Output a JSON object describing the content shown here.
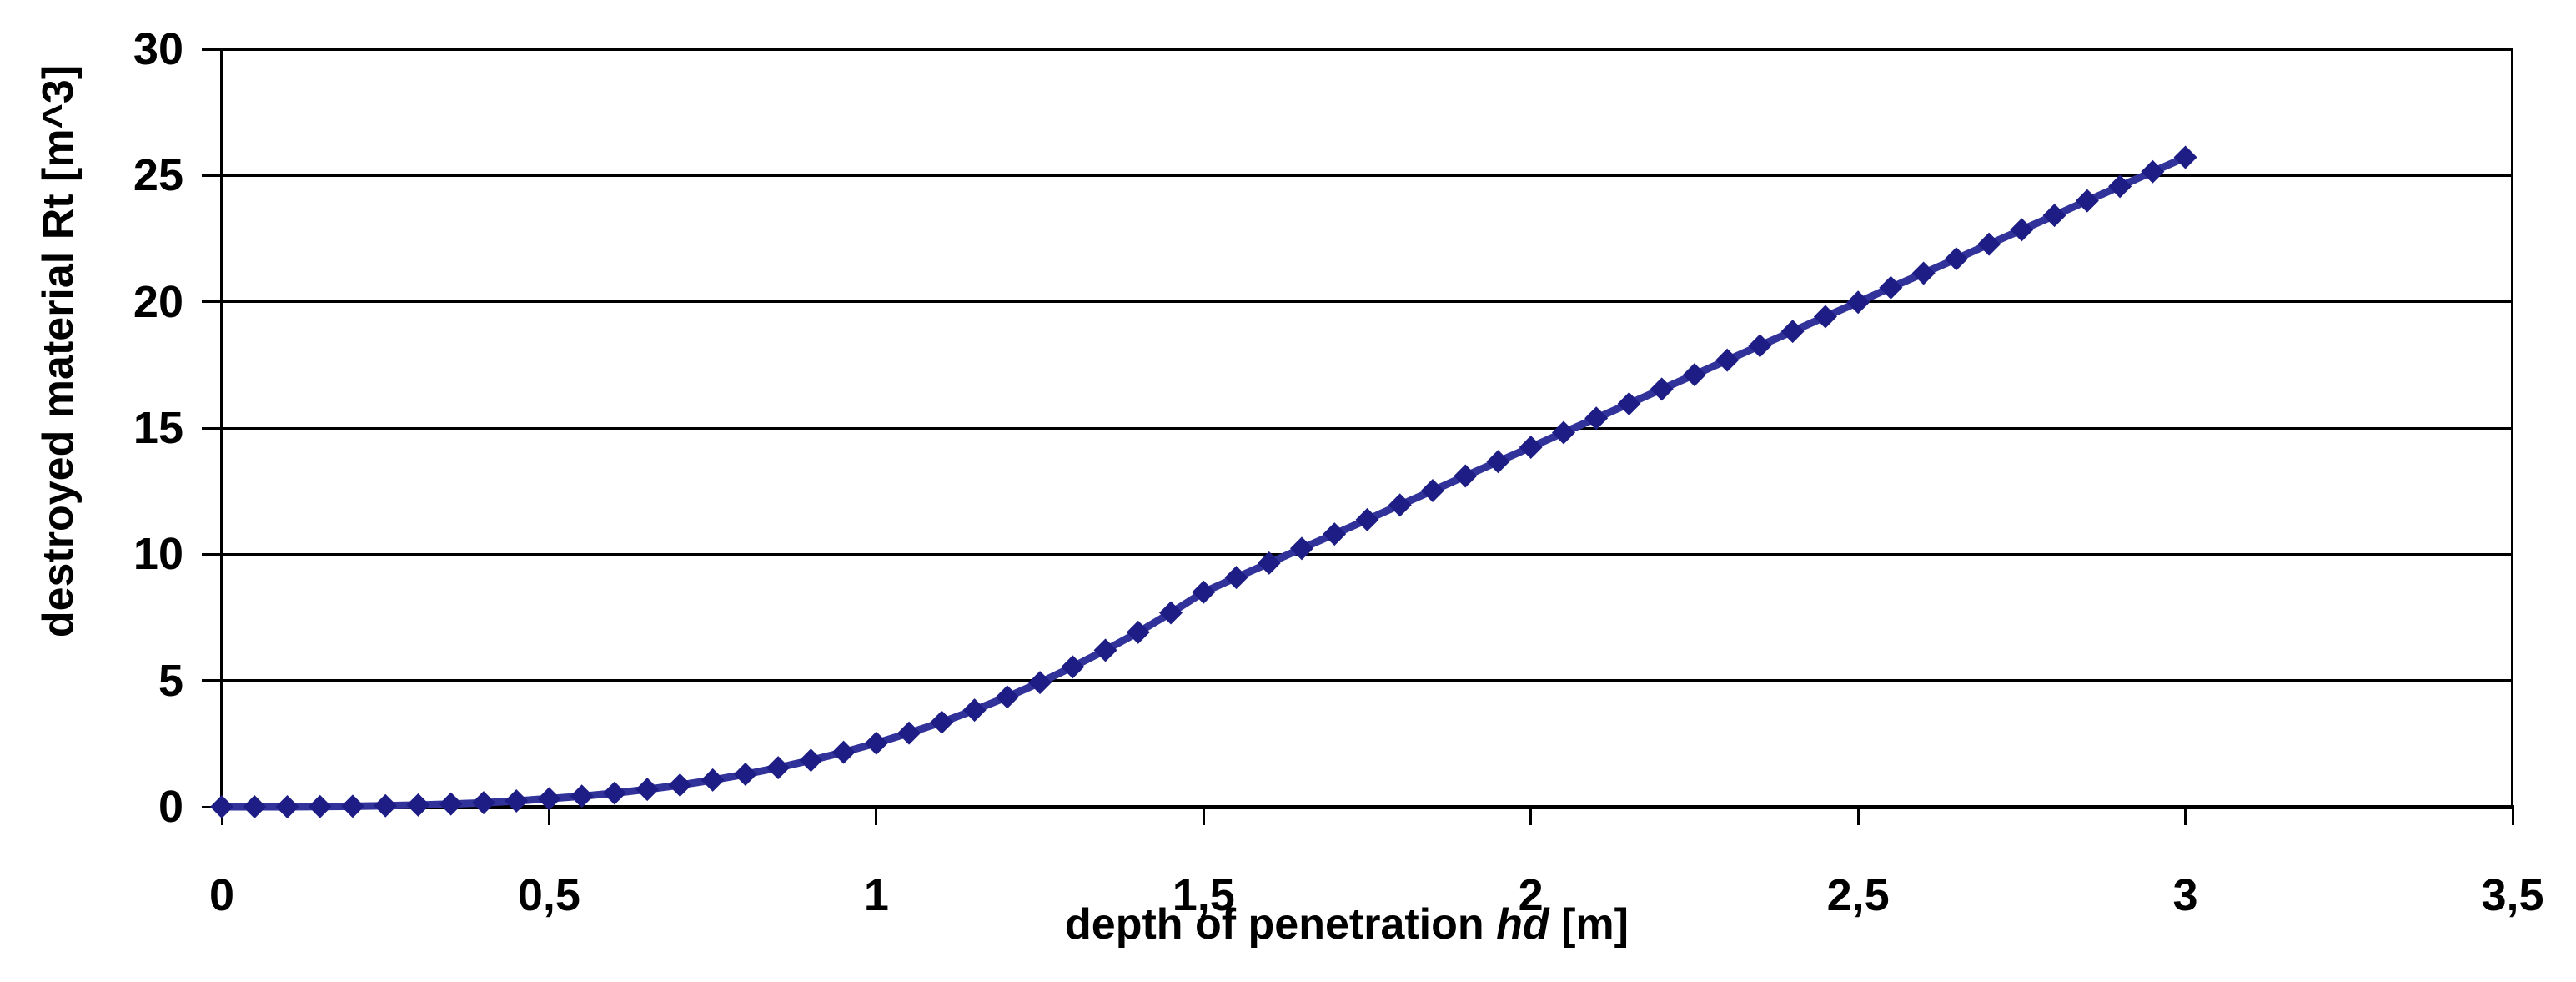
{
  "chart_data": {
    "type": "line",
    "title": "",
    "xlabel": "depth of penetration hd [m]",
    "xlabel_parts": {
      "prefix": "depth of penetration ",
      "italic": "hd",
      "suffix": " [m]"
    },
    "ylabel": "destroyed material Rt [m^3]",
    "x_tick_labels": [
      "0",
      "0,5",
      "1",
      "1,5",
      "2",
      "2,5",
      "3",
      "3,5"
    ],
    "x_tick_values": [
      0,
      0.5,
      1,
      1.5,
      2,
      2.5,
      3,
      3.5
    ],
    "y_tick_labels": [
      "0",
      "5",
      "10",
      "15",
      "20",
      "25",
      "30"
    ],
    "y_tick_values": [
      0,
      5,
      10,
      15,
      20,
      25,
      30
    ],
    "xlim": [
      0,
      3.5
    ],
    "ylim": [
      0,
      30
    ],
    "decimal_separator": ",",
    "grid": "horizontal-solid",
    "legend": "none",
    "marker": "diamond",
    "colors": {
      "marker": "#1D1D85",
      "line": "#32329B",
      "axis": "#000000",
      "grid": "#000000",
      "text": "#000000",
      "background": "#FFFFFF"
    },
    "series": [
      {
        "name": "destroyed material Rt",
        "x": [
          0,
          0.05,
          0.1,
          0.15,
          0.2,
          0.25,
          0.3,
          0.35,
          0.4,
          0.45,
          0.5,
          0.55,
          0.6,
          0.65,
          0.7,
          0.75,
          0.8,
          0.85,
          0.9,
          0.95,
          1,
          1.05,
          1.1,
          1.15,
          1.2,
          1.25,
          1.3,
          1.35,
          1.4,
          1.45,
          1.5,
          1.55,
          1.6,
          1.65,
          1.7,
          1.75,
          1.8,
          1.85,
          1.9,
          1.95,
          2,
          2.05,
          2.1,
          2.15,
          2.2,
          2.25,
          2.3,
          2.35,
          2.4,
          2.45,
          2.5,
          2.55,
          2.6,
          2.65,
          2.7,
          2.75,
          2.8,
          2.85,
          2.9,
          2.95,
          3
        ],
        "y": [
          0,
          0,
          0,
          0.01,
          0.02,
          0.04,
          0.07,
          0.11,
          0.16,
          0.23,
          0.32,
          0.42,
          0.54,
          0.69,
          0.86,
          1.06,
          1.29,
          1.55,
          1.84,
          2.16,
          2.52,
          2.92,
          3.35,
          3.83,
          4.35,
          4.92,
          5.54,
          6.2,
          6.91,
          7.68,
          8.5,
          9.08,
          9.65,
          10.23,
          10.8,
          11.37,
          11.95,
          12.52,
          13.1,
          13.67,
          14.24,
          14.82,
          15.39,
          15.96,
          16.54,
          17.11,
          17.69,
          18.26,
          18.83,
          19.41,
          19.98,
          20.56,
          21.13,
          21.7,
          22.28,
          22.85,
          23.42,
          24.0,
          24.57,
          25.15,
          25.72
        ]
      }
    ]
  }
}
